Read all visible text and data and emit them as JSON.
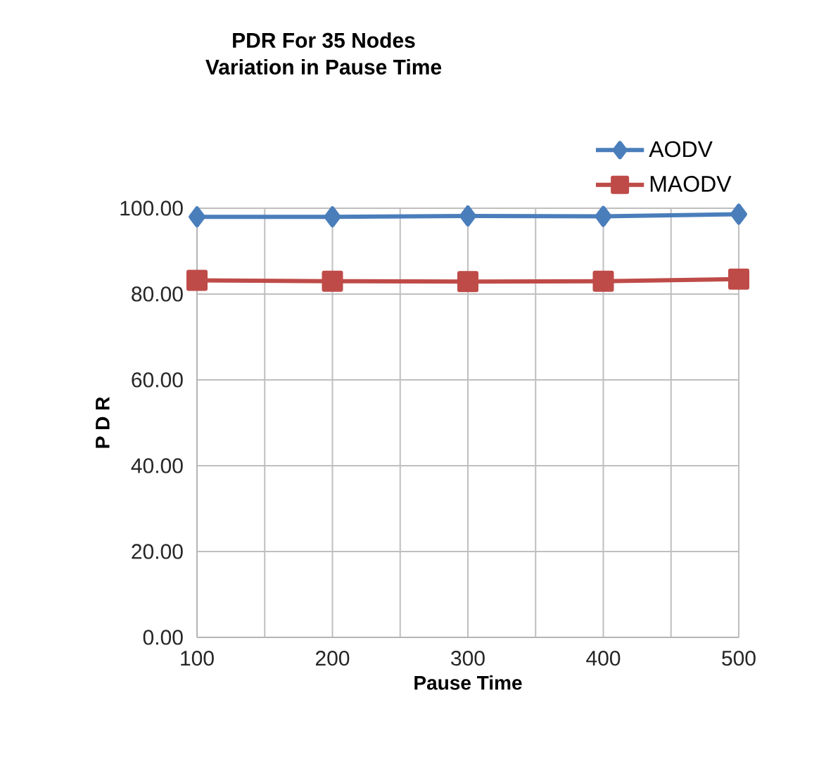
{
  "chart_data": {
    "type": "line",
    "title": "PDR For  35 Nodes\nVariation in Pause Time",
    "xlabel": "Pause Time",
    "ylabel": "P D R",
    "x": [
      100,
      200,
      300,
      400,
      500
    ],
    "series": [
      {
        "name": "AODV",
        "color": "#4a7ebb",
        "values": [
          98.0,
          98.0,
          98.2,
          98.1,
          98.6
        ],
        "marker": "diamond"
      },
      {
        "name": "MAODV",
        "color": "#be4b48",
        "values": [
          83.2,
          83.0,
          82.9,
          83.0,
          83.5
        ],
        "marker": "square"
      }
    ],
    "xlim": [
      100,
      500
    ],
    "ylim": [
      0,
      100
    ],
    "xticks": [
      100,
      {
        "value": 150,
        "label": null
      },
      200,
      {
        "value": 250,
        "label": null
      },
      300,
      {
        "value": 350,
        "label": null
      },
      400,
      {
        "value": 450,
        "label": null
      },
      500
    ],
    "yticks": [
      {
        "value": 0,
        "label": "0.00"
      },
      {
        "value": 20,
        "label": "20.00"
      },
      {
        "value": 40,
        "label": "40.00"
      },
      {
        "value": 60,
        "label": "60.00"
      },
      {
        "value": 80,
        "label": "80.00"
      },
      {
        "value": 100,
        "label": "100.00"
      }
    ],
    "grid": true,
    "legend": "top right",
    "line_style": "solid"
  }
}
